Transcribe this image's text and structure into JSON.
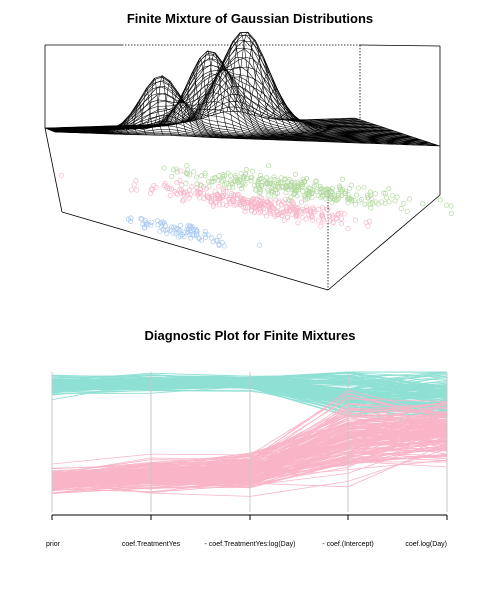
{
  "charts": [
    {
      "title": "Finite Mixture of Gaussian Distributions",
      "chart_data": {
        "type": "surface",
        "title": "Finite Mixture of Gaussian Distributions",
        "surface_peaks": [
          {
            "component": 1,
            "relative_height": 0.6
          },
          {
            "component": 2,
            "relative_height": 0.82
          },
          {
            "component": 3,
            "relative_height": 1.0
          }
        ],
        "projected_clusters": [
          {
            "component": 1,
            "color": "#a9c8f0",
            "points": 80
          },
          {
            "component": 2,
            "color": "#f7b6c6",
            "points": 300
          },
          {
            "component": 3,
            "color": "#b3d9a0",
            "points": 300
          }
        ]
      }
    },
    {
      "title": "Diagnostic Plot for Finite Mixtures",
      "chart_data": {
        "type": "parallel_coordinates",
        "title": "Diagnostic Plot for Finite Mixtures",
        "axes": [
          "prior",
          "coef.TreatmentYes",
          "coef.TreatmentYes:log(Day)",
          "coef.(Intercept)",
          "coef.log(Day)"
        ],
        "axis_tick_labels": [
          "prior",
          "coef.TreatmentYes",
          "- coef.TreatmentYes:log(Day)",
          "- coef.(Intercept)",
          "coef.log(Day)"
        ],
        "series": [
          {
            "color": "#8fe0d4",
            "profile": [
              0.1,
              0.08,
              0.08,
              0.15,
              0.18
            ],
            "spread": [
              0.04,
              0.04,
              0.03,
              0.12,
              0.14
            ]
          },
          {
            "color": "#f9b5c7",
            "profile": [
              0.78,
              0.74,
              0.72,
              0.48,
              0.42
            ],
            "spread": [
              0.05,
              0.07,
              0.09,
              0.18,
              0.14
            ]
          }
        ]
      }
    }
  ]
}
